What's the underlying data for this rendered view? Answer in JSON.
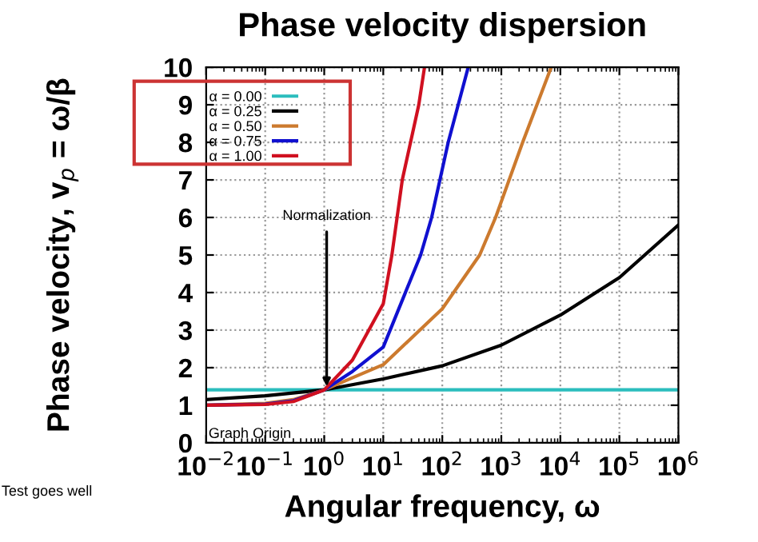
{
  "chart_data": {
    "type": "line",
    "title": "Phase velocity dispersion",
    "xlabel": "Angular frequency, ω",
    "ylabel": "Phase velocity, v$_{p}$ = ω/β",
    "log": "x",
    "xlim": [
      0.01,
      1000000
    ],
    "ylim": [
      0,
      10
    ],
    "xticks": [
      {
        "value": 0.01,
        "label": "10$^{−2}$"
      },
      {
        "value": 0.1,
        "label": "10$^{−1}$"
      },
      {
        "value": 1,
        "label": "10$^{0}$"
      },
      {
        "value": 10,
        "label": "10$^{1}$"
      },
      {
        "value": 100,
        "label": "10$^{2}$"
      },
      {
        "value": 1000,
        "label": "10$^{3}$"
      },
      {
        "value": 10000,
        "label": "10$^{4}$"
      },
      {
        "value": 100000,
        "label": "10$^{5}$"
      },
      {
        "value": 1000000,
        "label": "10$^{6}$"
      }
    ],
    "yticks": [
      0,
      1,
      2,
      3,
      4,
      5,
      6,
      7,
      8,
      9,
      10
    ],
    "grid": true,
    "legend": "top left",
    "marker": "none",
    "line_style": "solid",
    "series": [
      {
        "name": "α = 0.00",
        "color": "#2bbdbd",
        "x": [
          0.01,
          1,
          1000000
        ],
        "values": [
          1.41,
          1.41,
          1.41
        ]
      },
      {
        "name": "α = 0.25",
        "color": "#000000",
        "x": [
          0.01,
          0.1,
          1,
          10,
          100,
          1000,
          10000,
          100000,
          1000000
        ],
        "values": [
          1.15,
          1.25,
          1.41,
          1.7,
          2.05,
          2.6,
          3.4,
          4.4,
          5.8
        ]
      },
      {
        "name": "α = 0.50",
        "color": "#cc7a2e",
        "x": [
          0.01,
          0.1,
          0.3,
          1,
          10,
          100,
          430,
          800,
          2300,
          7000
        ],
        "values": [
          1.0,
          1.05,
          1.15,
          1.41,
          2.08,
          3.57,
          5,
          6,
          8,
          10
        ]
      },
      {
        "name": "α = 0.75",
        "color": "#1010d0",
        "x": [
          0.01,
          0.1,
          0.3,
          1,
          3,
          10,
          43,
          66,
          126,
          275
        ],
        "values": [
          1.0,
          1.03,
          1.12,
          1.41,
          1.9,
          2.55,
          5,
          6,
          8,
          10
        ]
      },
      {
        "name": "α = 1.00",
        "color": "#d01020",
        "x": [
          0.01,
          0.1,
          0.3,
          1,
          3,
          10,
          14,
          21,
          40,
          50
        ],
        "values": [
          1.0,
          1.02,
          1.1,
          1.41,
          2.2,
          3.7,
          5,
          7,
          9,
          10
        ]
      }
    ],
    "annotations": [
      {
        "text": "Normalization",
        "x": 1.1,
        "y": 1.5
      },
      "Graph Origin",
      "Test goes well"
    ]
  }
}
